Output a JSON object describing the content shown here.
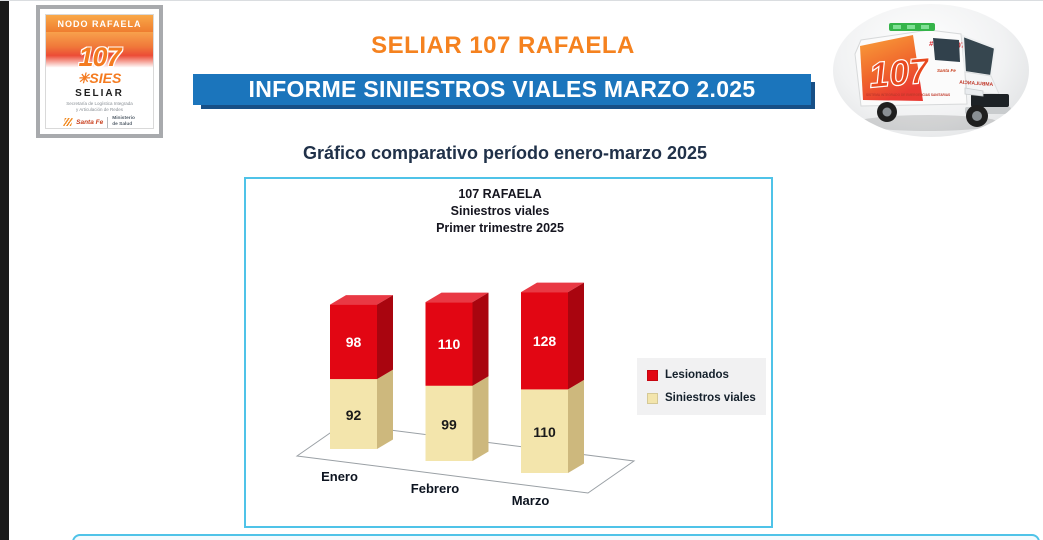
{
  "page": {
    "main_title": "SELIAR 107 RAFAELA",
    "banner_title": "INFORME SINIESTROS VIALES MARZO 2.025",
    "section_heading": "Gráfico comparativo período enero-marzo 2025"
  },
  "badge": {
    "header": "NODO RAFAELA",
    "number": "107",
    "star": "✳",
    "brand": "SIES",
    "name": "SELIAR",
    "subtitle_line1": "Secretaría de Logística Integrada",
    "subtitle_line2": "y Articulación de Redes",
    "gov_left": "Santa Fe",
    "gov_right_line1": "Ministerio",
    "gov_right_line2": "de Salud"
  },
  "ambulance": {
    "roof_text": "#SIES 107",
    "side_number": "107",
    "side_caption": "SISTEMA INTEGRADO DE EMERGENCIAS SANITARIAS",
    "hood_text_mirrored": "AMBULANCIA",
    "gov_brand": "Santa Fe"
  },
  "chart_data": {
    "type": "bar",
    "style": "3d-stacked",
    "title_lines": [
      "107 RAFAELA",
      "Siniestros viales",
      "Primer trimestre 2025"
    ],
    "categories": [
      "Enero",
      "Febrero",
      "Marzo"
    ],
    "series": [
      {
        "name": "Siniestros viales",
        "values": [
          92,
          99,
          110
        ],
        "color": "#F3E5AC",
        "color_side": "#CDB87D",
        "color_top": "#F8EFC6",
        "label_color": "#1a1a1a"
      },
      {
        "name": "Lesionados",
        "values": [
          98,
          110,
          128
        ],
        "color": "#E20613",
        "color_side": "#A9050F",
        "color_top": "#E93944",
        "label_color": "#ffffff"
      }
    ],
    "legend": [
      "Lesionados",
      "Siniestros viales"
    ],
    "legend_position": "right",
    "value_labels": true,
    "axes_visible": false
  },
  "colors": {
    "accent_orange": "#F5821F",
    "banner_blue": "#1B75BC",
    "banner_shadow": "#174F86",
    "chart_border": "#4FC3E8",
    "heading_navy": "#203149",
    "legend_bg": "#F1F1F2",
    "left_edge_bar": "#1B1B1B"
  }
}
